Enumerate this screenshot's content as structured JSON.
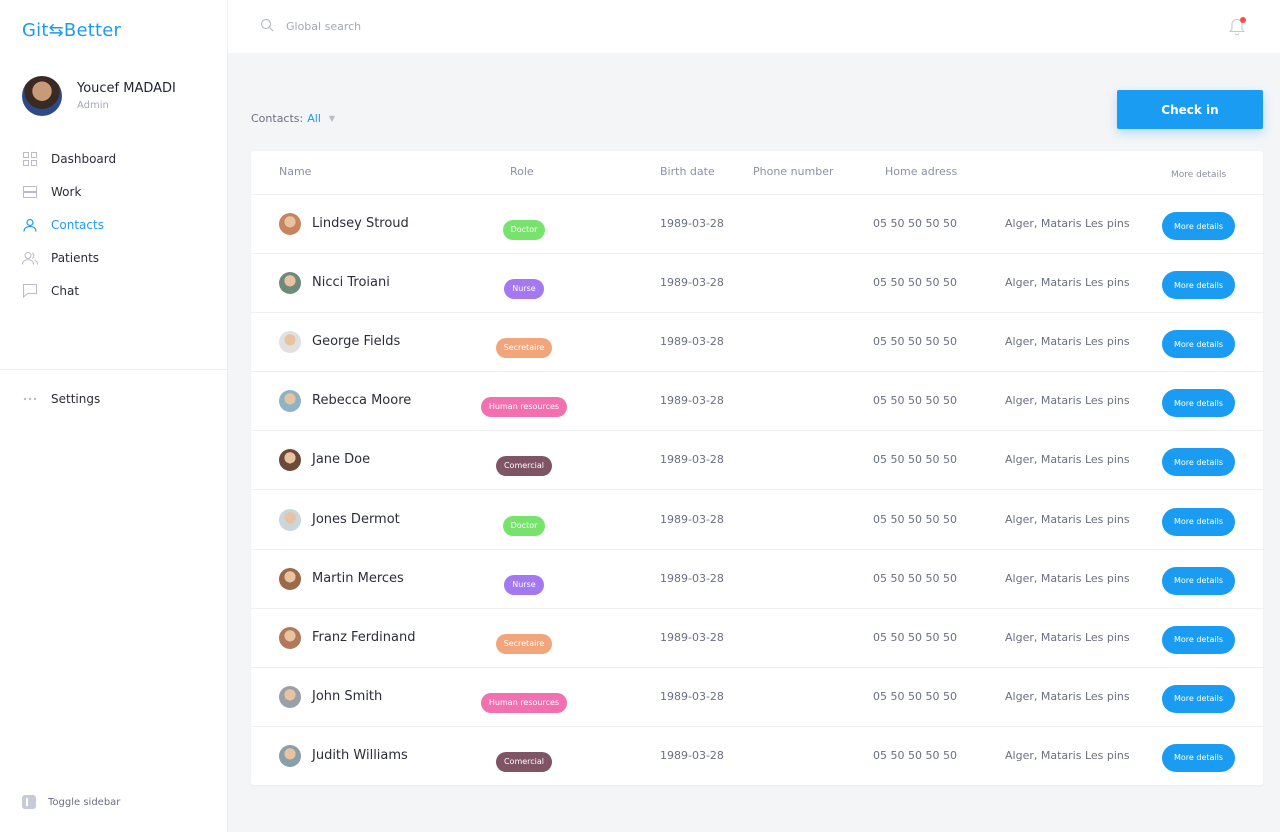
{
  "app": {
    "logo": "Git Better",
    "logo_glyph": "⇆"
  },
  "profile": {
    "name": "Youcef MADADI",
    "role": "Admin"
  },
  "nav": [
    {
      "label": "Dashboard",
      "icon": "dashboard-icon",
      "active": false
    },
    {
      "label": "Work",
      "icon": "work-icon",
      "active": false
    },
    {
      "label": "Contacts",
      "icon": "contacts-icon",
      "active": true
    },
    {
      "label": "Patients",
      "icon": "patients-icon",
      "active": false
    },
    {
      "label": "Chat",
      "icon": "chat-icon",
      "active": false
    }
  ],
  "settings": {
    "label": "Settings",
    "icon": "more-dots-icon"
  },
  "toggle": {
    "label": "Toggle sidebar"
  },
  "search": {
    "placeholder": "Global search"
  },
  "filter": {
    "label": "Contacts:",
    "value": "All"
  },
  "checkin": {
    "label": "Check in"
  },
  "colors": {
    "accent": "#1a9cf2",
    "Doctor": "#77e36d",
    "Nurse": "#a378f0",
    "Secretaire": "#f2a57a",
    "Human resources": "#f26fb0",
    "Comercial": "#7f5565"
  },
  "table": {
    "headers": {
      "name": "Name",
      "role": "Role",
      "birth": "Birth date",
      "phone": "Phone number",
      "address": "Home adress",
      "details": "More details"
    },
    "rows": [
      {
        "name": "Lindsey Stroud",
        "role": "Doctor",
        "birth": "1989-03-28",
        "phone": "05 50 50 50 50",
        "address": "Alger, Mataris Les pins",
        "action": "More details"
      },
      {
        "name": "Nicci Troiani",
        "role": "Nurse",
        "birth": "1989-03-28",
        "phone": "05 50 50 50 50",
        "address": "Alger, Mataris Les pins",
        "action": "More details"
      },
      {
        "name": "George Fields",
        "role": "Secretaire",
        "birth": "1989-03-28",
        "phone": "05 50 50 50 50",
        "address": "Alger, Mataris Les pins",
        "action": "More details"
      },
      {
        "name": "Rebecca Moore",
        "role": "Human resources",
        "birth": "1989-03-28",
        "phone": "05 50 50 50 50",
        "address": "Alger, Mataris Les pins",
        "action": "More details"
      },
      {
        "name": "Jane Doe",
        "role": "Comercial",
        "birth": "1989-03-28",
        "phone": "05 50 50 50 50",
        "address": "Alger, Mataris Les pins",
        "action": "More details"
      },
      {
        "name": "Jones Dermot",
        "role": "Doctor",
        "birth": "1989-03-28",
        "phone": "05 50 50 50 50",
        "address": "Alger, Mataris Les pins",
        "action": "More details"
      },
      {
        "name": "Martin Merces",
        "role": "Nurse",
        "birth": "1989-03-28",
        "phone": "05 50 50 50 50",
        "address": "Alger, Mataris Les pins",
        "action": "More details"
      },
      {
        "name": "Franz Ferdinand",
        "role": "Secretaire",
        "birth": "1989-03-28",
        "phone": "05 50 50 50 50",
        "address": "Alger, Mataris Les pins",
        "action": "More details"
      },
      {
        "name": "John Smith",
        "role": "Human resources",
        "birth": "1989-03-28",
        "phone": "05 50 50 50 50",
        "address": "Alger, Mataris Les pins",
        "action": "More details"
      },
      {
        "name": "Judith Williams",
        "role": "Comercial",
        "birth": "1989-03-28",
        "phone": "05 50 50 50 50",
        "address": "Alger, Mataris Les pins",
        "action": "More details"
      }
    ]
  }
}
